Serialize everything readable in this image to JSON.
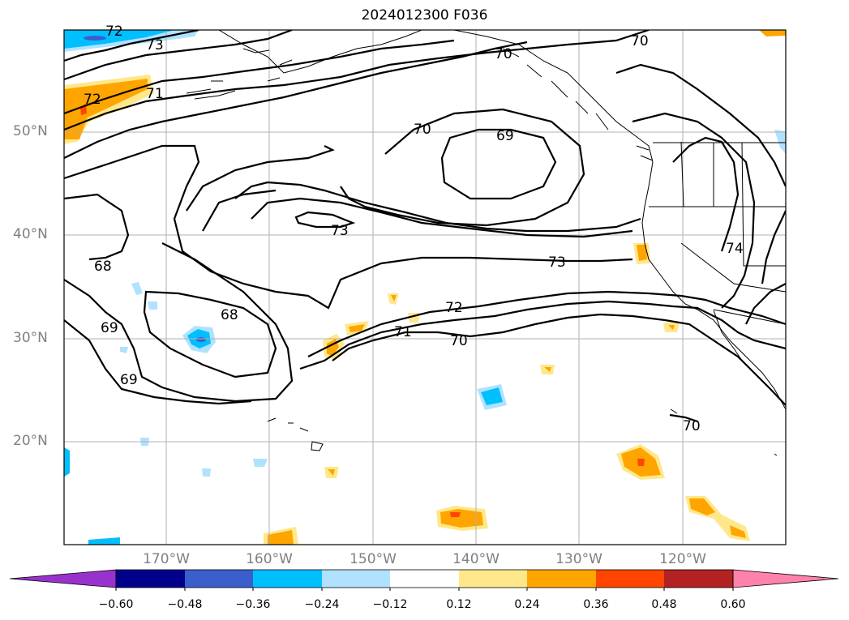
{
  "title": "2024012300 F036",
  "lat_ticks": [
    {
      "label": "50°N",
      "value": 50
    },
    {
      "label": "40°N",
      "value": 40
    },
    {
      "label": "30°N",
      "value": 30
    },
    {
      "label": "20°N",
      "value": 20
    }
  ],
  "lon_ticks": [
    {
      "label": "170°W",
      "value": -170
    },
    {
      "label": "160°W",
      "value": -160
    },
    {
      "label": "150°W",
      "value": -150
    },
    {
      "label": "140°W",
      "value": -140
    },
    {
      "label": "130°W",
      "value": -130
    },
    {
      "label": "120°W",
      "value": -120
    }
  ],
  "contour_labels": [
    "72",
    "73",
    "70",
    "70",
    "70",
    "72",
    "71",
    "69",
    "73",
    "73",
    "68",
    "69",
    "68",
    "69",
    "72",
    "71",
    "70",
    "74",
    "70"
  ],
  "colorbar": {
    "labels": [
      "−0.60",
      "−0.48",
      "−0.36",
      "−0.24",
      "−0.12",
      "0.12",
      "0.24",
      "0.36",
      "0.48",
      "0.60"
    ],
    "colors": [
      "#9932cc",
      "#00008b",
      "#3a5fcd",
      "#00bfff",
      "#b0e2ff",
      "#ffffff",
      "#ffe88c",
      "#ffa500",
      "#ff4500",
      "#b22222",
      "#ff82ab"
    ]
  }
}
